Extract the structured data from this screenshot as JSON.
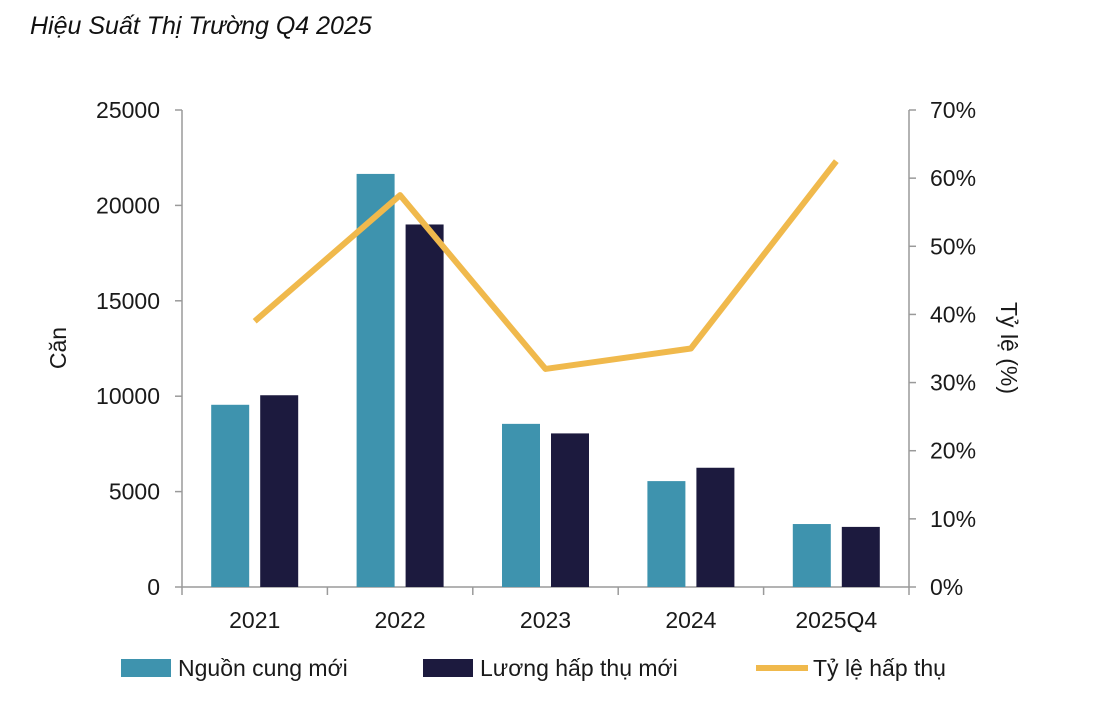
{
  "chart_data": {
    "type": "bar",
    "title": "Hiệu Suất Thị Trường Q4 2025",
    "categories": [
      "2021",
      "2022",
      "2023",
      "2024",
      "2025Q4"
    ],
    "series": [
      {
        "name": "Nguồn cung mới",
        "kind": "bar",
        "axis": "left",
        "color": "#3E93AE",
        "values": [
          9550,
          21650,
          8550,
          5550,
          3300
        ]
      },
      {
        "name": "Lương hấp thụ mới",
        "kind": "bar",
        "axis": "left",
        "color": "#1C1A3E",
        "values": [
          10050,
          19000,
          8050,
          6250,
          3150
        ]
      },
      {
        "name": "Tỷ lệ hấp thụ",
        "kind": "line",
        "axis": "right",
        "color": "#F0B94C",
        "values": [
          39,
          57.5,
          32,
          35,
          62.5
        ]
      }
    ],
    "ylabel": "Căn",
    "y2label": "Tỷ lệ (%)",
    "ylim": [
      0,
      25000
    ],
    "y2lim": [
      0,
      70
    ],
    "yticks": [
      "0",
      "5000",
      "10000",
      "15000",
      "20000",
      "25000"
    ],
    "y2ticks": [
      "0%",
      "10%",
      "20%",
      "30%",
      "40%",
      "50%",
      "60%",
      "70%"
    ],
    "legend_position": "bottom"
  }
}
